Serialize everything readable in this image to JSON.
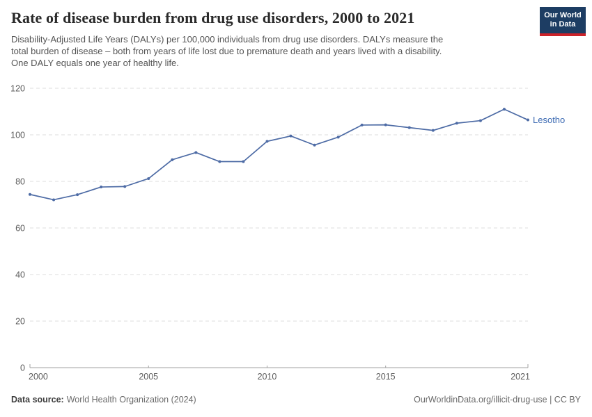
{
  "header": {
    "title": "Rate of disease burden from drug use disorders, 2000 to 2021",
    "subtitle_lines": [
      "Disability-Adjusted Life Years (DALYs) per 100,000 individuals from drug use disorders. DALYs measure the",
      "total burden of disease – both from years of life lost due to premature death and years lived with a disability.",
      "One DALY equals one year of healthy life."
    ],
    "logo": {
      "line1": "Our World",
      "line2": "in Data",
      "bg_color": "#1d3d63",
      "accent_color": "#cc2229"
    }
  },
  "chart_data": {
    "type": "line",
    "title": "Rate of disease burden from drug use disorders, 2000 to 2021",
    "xlabel": "",
    "ylabel": "",
    "xlim": [
      2000,
      2021
    ],
    "ylim": [
      0,
      120
    ],
    "x_ticks": [
      2000,
      2005,
      2010,
      2015,
      2021
    ],
    "y_ticks": [
      0,
      20,
      40,
      60,
      80,
      100,
      120
    ],
    "grid": "horizontal-dashed",
    "legend_position": "end-of-line-label",
    "colors": {
      "grid": "#dedede",
      "axis": "#a1a1a1",
      "tick_label": "#5b5b5b",
      "series_label": "#3d6bb3"
    },
    "series": [
      {
        "name": "Lesotho",
        "color": "#4d6ba5",
        "x": [
          2000,
          2001,
          2002,
          2003,
          2004,
          2005,
          2006,
          2007,
          2008,
          2009,
          2010,
          2011,
          2012,
          2013,
          2014,
          2015,
          2016,
          2017,
          2018,
          2019,
          2020,
          2021
        ],
        "values": [
          74.4,
          72.1,
          74.3,
          77.6,
          77.8,
          81.2,
          89.3,
          92.4,
          88.5,
          88.5,
          97.2,
          99.5,
          95.6,
          99.0,
          104.2,
          104.3,
          103.1,
          101.9,
          105.0,
          106.1,
          111.0,
          106.4
        ]
      }
    ]
  },
  "footer": {
    "source_label": "Data source:",
    "source_value": "World Health Organization (2024)",
    "credit": "OurWorldinData.org/illicit-drug-use | CC BY"
  }
}
